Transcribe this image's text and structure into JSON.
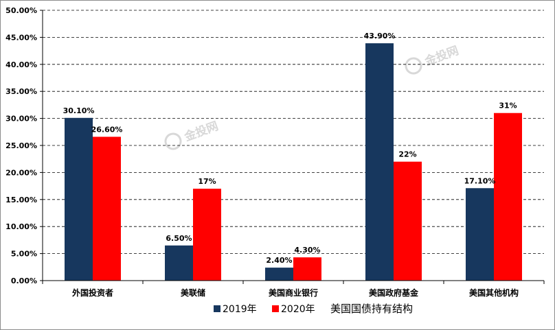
{
  "chart_data": {
    "type": "bar",
    "title": "美国国债持有结构",
    "categories": [
      "外国投资者",
      "美联储",
      "美国商业银行",
      "美国政府基金",
      "美国其他机构"
    ],
    "series": [
      {
        "name": "2019年",
        "color": "#17375e",
        "values": [
          30.1,
          6.5,
          2.4,
          43.9,
          17.1
        ],
        "labels": [
          "30.10%",
          "6.50%",
          "2.40%",
          "43.90%",
          "17.10%"
        ]
      },
      {
        "name": "2020年",
        "color": "#ff0000",
        "values": [
          26.6,
          17,
          4.3,
          22,
          31
        ],
        "labels": [
          "26.60%",
          "17%",
          "4.30%",
          "22%",
          "31%"
        ]
      }
    ],
    "ylim": [
      0,
      50
    ],
    "yticks": [
      "0.00%",
      "5.00%",
      "10.00%",
      "15.00%",
      "20.00%",
      "25.00%",
      "30.00%",
      "35.00%",
      "40.00%",
      "45.00%",
      "50.00%"
    ],
    "xlabel": "",
    "ylabel": "",
    "grid": "horizontal dashed",
    "legend_position": "bottom"
  },
  "watermark": {
    "text": "金投网"
  }
}
